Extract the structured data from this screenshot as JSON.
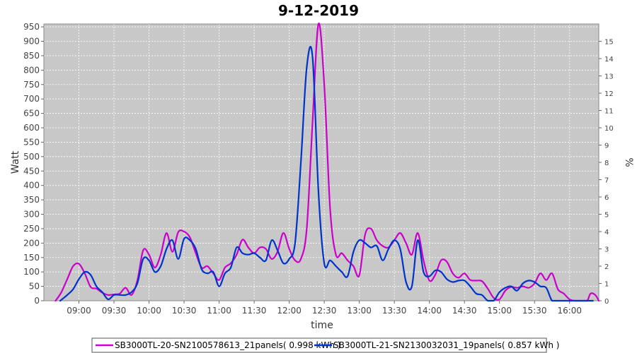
{
  "chart_data": {
    "type": "line",
    "title": "9-12-2019",
    "xlabel": "time",
    "ylabel": "Watt",
    "y2label": "%",
    "x_ticks": [
      "09:00",
      "09:30",
      "10:00",
      "10:30",
      "11:00",
      "11:30",
      "12:00",
      "12:30",
      "13:00",
      "13:30",
      "14:00",
      "14:30",
      "15:00",
      "15:30",
      "16:00"
    ],
    "xlim": [
      "08:30",
      "16:25"
    ],
    "ylim": [
      0,
      960
    ],
    "y_ticks": [
      0,
      50,
      100,
      150,
      200,
      250,
      300,
      350,
      400,
      450,
      500,
      550,
      600,
      650,
      700,
      750,
      800,
      850,
      900,
      950
    ],
    "y2lim": [
      0,
      16
    ],
    "y2_ticks": [
      0,
      1,
      2,
      3,
      4,
      5,
      6,
      7,
      8,
      9,
      10,
      11,
      12,
      13,
      14,
      15
    ],
    "grid": true,
    "legend_position": "bottom",
    "series": [
      {
        "name": "SB3000TL-20-SN2100578613_21panels( 0.998 kWh )",
        "color": "#cc00cc",
        "points": [
          [
            "08:40",
            0
          ],
          [
            "08:45",
            30
          ],
          [
            "08:50",
            75
          ],
          [
            "08:55",
            120
          ],
          [
            "09:00",
            128
          ],
          [
            "09:05",
            95
          ],
          [
            "09:10",
            48
          ],
          [
            "09:15",
            42
          ],
          [
            "09:20",
            28
          ],
          [
            "09:25",
            20
          ],
          [
            "09:30",
            22
          ],
          [
            "09:35",
            25
          ],
          [
            "09:40",
            45
          ],
          [
            "09:45",
            20
          ],
          [
            "09:50",
            70
          ],
          [
            "09:55",
            175
          ],
          [
            "10:00",
            160
          ],
          [
            "10:05",
            115
          ],
          [
            "10:10",
            160
          ],
          [
            "10:15",
            235
          ],
          [
            "10:20",
            170
          ],
          [
            "10:25",
            238
          ],
          [
            "10:30",
            240
          ],
          [
            "10:35",
            220
          ],
          [
            "10:40",
            165
          ],
          [
            "10:45",
            115
          ],
          [
            "10:50",
            120
          ],
          [
            "10:55",
            95
          ],
          [
            "11:00",
            72
          ],
          [
            "11:05",
            115
          ],
          [
            "11:10",
            130
          ],
          [
            "11:15",
            160
          ],
          [
            "11:20",
            212
          ],
          [
            "11:25",
            185
          ],
          [
            "11:30",
            165
          ],
          [
            "11:35",
            185
          ],
          [
            "11:40",
            180
          ],
          [
            "11:45",
            145
          ],
          [
            "11:50",
            170
          ],
          [
            "11:55",
            235
          ],
          [
            "12:00",
            180
          ],
          [
            "12:05",
            140
          ],
          [
            "12:10",
            145
          ],
          [
            "12:15",
            250
          ],
          [
            "12:20",
            620
          ],
          [
            "12:25",
            960
          ],
          [
            "12:30",
            750
          ],
          [
            "12:35",
            320
          ],
          [
            "12:40",
            160
          ],
          [
            "12:45",
            165
          ],
          [
            "12:50",
            140
          ],
          [
            "12:55",
            120
          ],
          [
            "13:00",
            88
          ],
          [
            "13:05",
            230
          ],
          [
            "13:10",
            250
          ],
          [
            "13:15",
            210
          ],
          [
            "13:20",
            190
          ],
          [
            "13:25",
            185
          ],
          [
            "13:30",
            210
          ],
          [
            "13:35",
            235
          ],
          [
            "13:40",
            200
          ],
          [
            "13:45",
            160
          ],
          [
            "13:50",
            235
          ],
          [
            "13:55",
            140
          ],
          [
            "14:00",
            70
          ],
          [
            "14:05",
            90
          ],
          [
            "14:10",
            140
          ],
          [
            "14:15",
            135
          ],
          [
            "14:20",
            95
          ],
          [
            "14:25",
            80
          ],
          [
            "14:30",
            95
          ],
          [
            "14:35",
            72
          ],
          [
            "14:40",
            70
          ],
          [
            "14:45",
            68
          ],
          [
            "14:50",
            42
          ],
          [
            "14:55",
            10
          ],
          [
            "15:00",
            5
          ],
          [
            "15:05",
            35
          ],
          [
            "15:10",
            48
          ],
          [
            "15:15",
            45
          ],
          [
            "15:20",
            50
          ],
          [
            "15:25",
            45
          ],
          [
            "15:30",
            60
          ],
          [
            "15:35",
            95
          ],
          [
            "15:40",
            72
          ],
          [
            "15:45",
            95
          ],
          [
            "15:50",
            40
          ],
          [
            "15:55",
            25
          ],
          [
            "16:00",
            5
          ],
          [
            "16:05",
            0
          ],
          [
            "16:10",
            0
          ],
          [
            "16:15",
            0
          ],
          [
            "16:18",
            25
          ],
          [
            "16:22",
            20
          ],
          [
            "16:25",
            0
          ]
        ]
      },
      {
        "name": "SB3000TL-21-SN2130032031_19panels( 0.857 kWh )",
        "color": "#0033cc",
        "points": [
          [
            "08:44",
            0
          ],
          [
            "08:50",
            20
          ],
          [
            "08:55",
            40
          ],
          [
            "09:00",
            75
          ],
          [
            "09:05",
            100
          ],
          [
            "09:10",
            90
          ],
          [
            "09:15",
            50
          ],
          [
            "09:20",
            30
          ],
          [
            "09:25",
            5
          ],
          [
            "09:30",
            20
          ],
          [
            "09:35",
            20
          ],
          [
            "09:40",
            20
          ],
          [
            "09:45",
            30
          ],
          [
            "09:50",
            60
          ],
          [
            "09:55",
            145
          ],
          [
            "10:00",
            140
          ],
          [
            "10:05",
            100
          ],
          [
            "10:10",
            120
          ],
          [
            "10:15",
            180
          ],
          [
            "10:20",
            210
          ],
          [
            "10:25",
            145
          ],
          [
            "10:30",
            215
          ],
          [
            "10:35",
            210
          ],
          [
            "10:40",
            180
          ],
          [
            "10:45",
            110
          ],
          [
            "10:50",
            95
          ],
          [
            "10:55",
            100
          ],
          [
            "11:00",
            50
          ],
          [
            "11:05",
            95
          ],
          [
            "11:10",
            115
          ],
          [
            "11:15",
            185
          ],
          [
            "11:20",
            165
          ],
          [
            "11:25",
            160
          ],
          [
            "11:30",
            165
          ],
          [
            "11:35",
            150
          ],
          [
            "11:40",
            140
          ],
          [
            "11:45",
            210
          ],
          [
            "11:50",
            175
          ],
          [
            "11:55",
            130
          ],
          [
            "12:00",
            145
          ],
          [
            "12:05",
            200
          ],
          [
            "12:10",
            480
          ],
          [
            "12:15",
            810
          ],
          [
            "12:20",
            845
          ],
          [
            "12:25",
            380
          ],
          [
            "12:30",
            130
          ],
          [
            "12:35",
            140
          ],
          [
            "12:40",
            120
          ],
          [
            "12:45",
            100
          ],
          [
            "12:50",
            85
          ],
          [
            "12:55",
            170
          ],
          [
            "13:00",
            210
          ],
          [
            "13:05",
            200
          ],
          [
            "13:10",
            185
          ],
          [
            "13:15",
            190
          ],
          [
            "13:20",
            140
          ],
          [
            "13:25",
            180
          ],
          [
            "13:30",
            210
          ],
          [
            "13:35",
            180
          ],
          [
            "13:40",
            65
          ],
          [
            "13:45",
            50
          ],
          [
            "13:50",
            210
          ],
          [
            "13:55",
            100
          ],
          [
            "14:00",
            85
          ],
          [
            "14:05",
            105
          ],
          [
            "14:10",
            100
          ],
          [
            "14:15",
            75
          ],
          [
            "14:20",
            65
          ],
          [
            "14:25",
            70
          ],
          [
            "14:30",
            70
          ],
          [
            "14:35",
            50
          ],
          [
            "14:40",
            25
          ],
          [
            "14:45",
            20
          ],
          [
            "14:50",
            0
          ],
          [
            "14:55",
            0
          ],
          [
            "15:00",
            30
          ],
          [
            "15:05",
            45
          ],
          [
            "15:10",
            50
          ],
          [
            "15:15",
            35
          ],
          [
            "15:20",
            60
          ],
          [
            "15:25",
            70
          ],
          [
            "15:30",
            65
          ],
          [
            "15:35",
            50
          ],
          [
            "15:40",
            45
          ],
          [
            "15:45",
            0
          ],
          [
            "15:50",
            0
          ],
          [
            "15:55",
            0
          ],
          [
            "16:00",
            0
          ],
          [
            "16:10",
            0
          ],
          [
            "16:20",
            0
          ]
        ]
      }
    ]
  }
}
